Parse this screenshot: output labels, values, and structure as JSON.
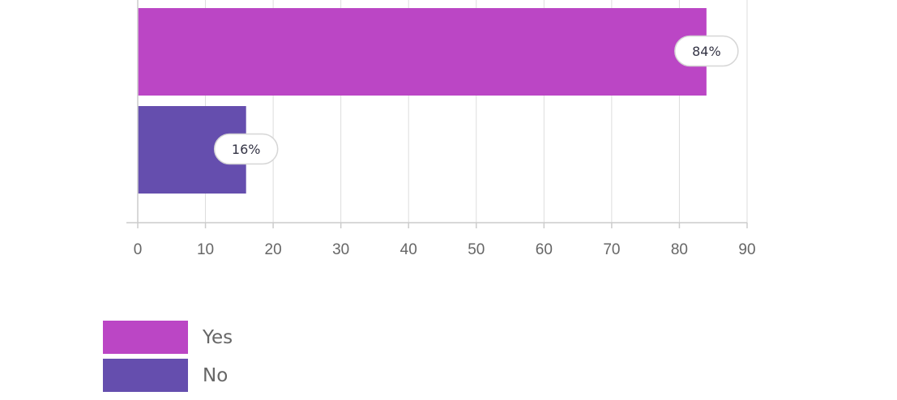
{
  "chart_data": {
    "type": "bar",
    "orientation": "horizontal",
    "categories": [
      "Yes",
      "No"
    ],
    "values": [
      84,
      16
    ],
    "value_labels": [
      "84%",
      "16%"
    ],
    "colors": [
      "#bb46c5",
      "#654eae"
    ],
    "xlim": [
      0,
      90
    ],
    "x_ticks": [
      0,
      10,
      20,
      30,
      40,
      50,
      60,
      70,
      80,
      90
    ],
    "grid": true,
    "legend_position": "bottom-left",
    "title": "",
    "xlabel": "",
    "ylabel": ""
  },
  "legend": {
    "items": [
      {
        "label": "Yes",
        "color": "#bb46c5"
      },
      {
        "label": "No",
        "color": "#654eae"
      }
    ]
  }
}
